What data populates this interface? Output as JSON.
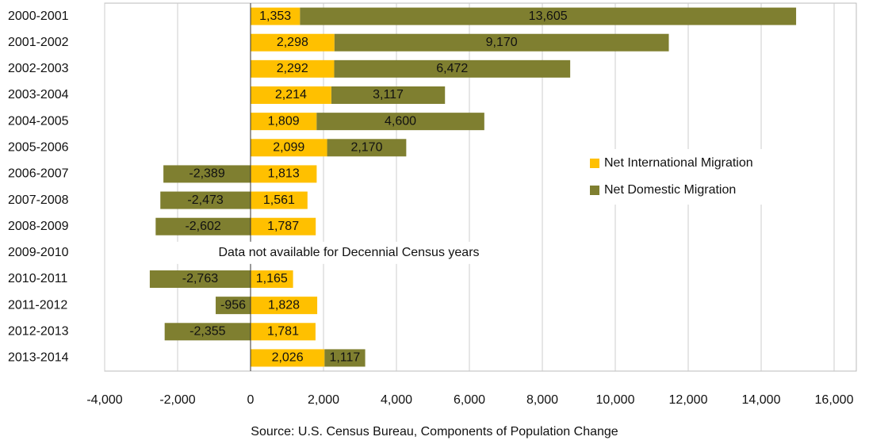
{
  "chart_data": {
    "type": "bar",
    "orientation": "horizontal",
    "stacked": true,
    "categories": [
      "2000-2001",
      "2001-2002",
      "2002-2003",
      "2003-2004",
      "2004-2005",
      "2005-2006",
      "2006-2007",
      "2007-2008",
      "2008-2009",
      "2009-2010",
      "2010-2011",
      "2011-2012",
      "2012-2013",
      "2013-2014"
    ],
    "series": [
      {
        "name": "Net International Migration",
        "color": "#ffc000",
        "values": [
          1353,
          2298,
          2292,
          2214,
          1809,
          2099,
          1813,
          1561,
          1787,
          null,
          1165,
          1828,
          1781,
          2026
        ],
        "value_labels": [
          "1,353",
          "2,298",
          "2,292",
          "2,214",
          "1,809",
          "2,099",
          "1,813",
          "1,561",
          "1,787",
          null,
          "1,165",
          "1,828",
          "1,781",
          "2,026"
        ]
      },
      {
        "name": "Net Domestic Migration",
        "color": "#7f7f30",
        "values": [
          13605,
          9170,
          6472,
          3117,
          4600,
          2170,
          -2389,
          -2473,
          -2602,
          null,
          -2763,
          -956,
          -2355,
          1117
        ],
        "value_labels": [
          "13,605",
          "9,170",
          "6,472",
          "3,117",
          "4,600",
          "2,170",
          "-2,389",
          "-2,473",
          "-2,602",
          null,
          "-2,763",
          "-956",
          "-2,355",
          "1,117"
        ]
      }
    ],
    "xlim": [
      -4000,
      16000
    ],
    "xticks": [
      {
        "value": -4000,
        "label": "-4,000"
      },
      {
        "value": -2000,
        "label": "-2,000"
      },
      0,
      {
        "value": 2000,
        "label": "2,000"
      },
      {
        "value": 4000,
        "label": "4,000"
      },
      {
        "value": 6000,
        "label": "6,000"
      },
      {
        "value": 8000,
        "label": "8,000"
      },
      {
        "value": 10000,
        "label": "10,000"
      },
      {
        "value": 12000,
        "label": "12,000"
      },
      {
        "value": 14000,
        "label": "14,000"
      },
      {
        "value": 16000,
        "label": "16,000"
      }
    ],
    "grid": true,
    "legend": "right",
    "annotation": "Data not available for Decennial Census years",
    "source": "Source: U.S. Census Bureau, Components of Population Change"
  }
}
